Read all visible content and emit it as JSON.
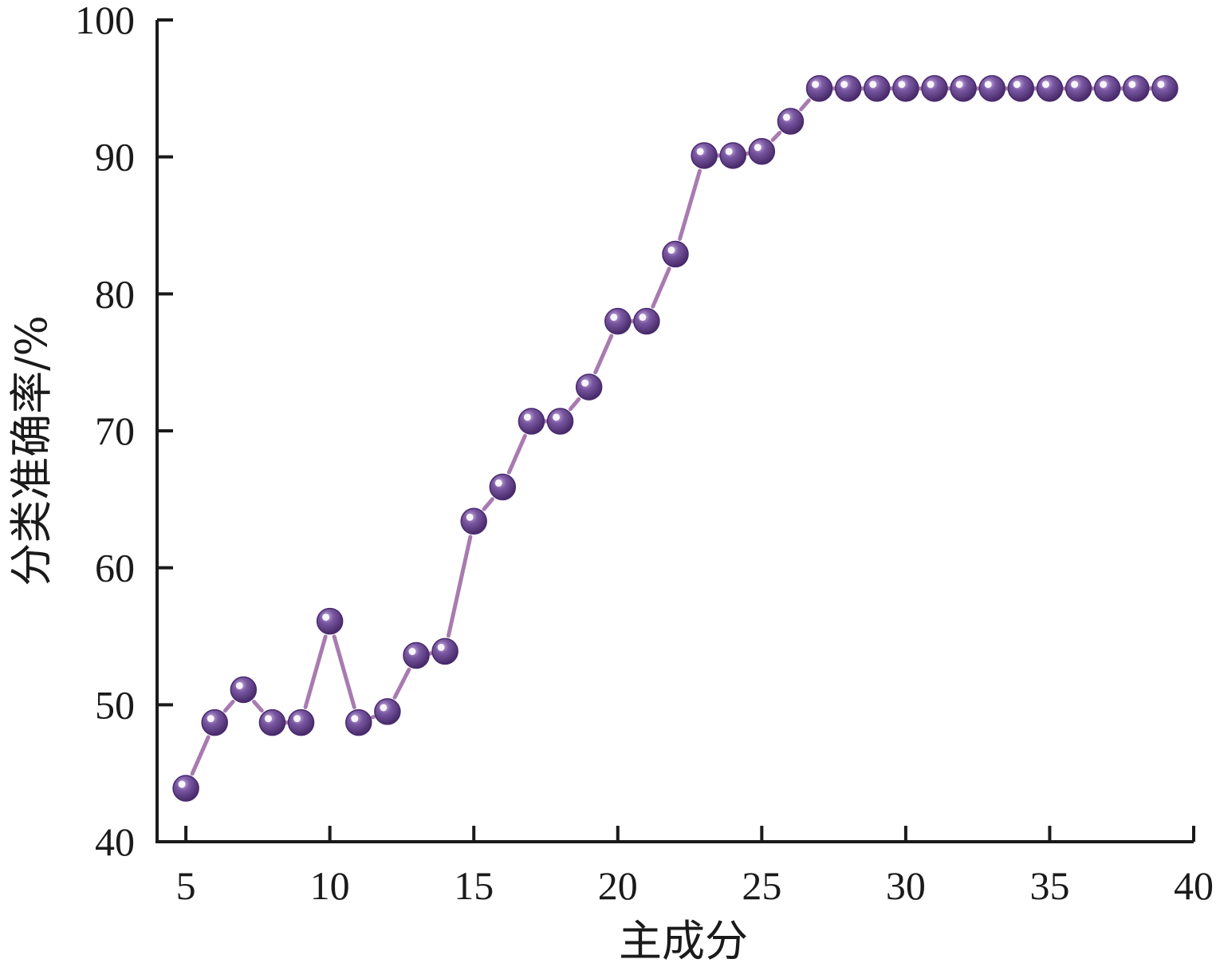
{
  "chart_data": {
    "type": "line",
    "xlabel": "主成分",
    "ylabel": "分类准确率/%",
    "xlim": [
      4,
      40
    ],
    "ylim": [
      40,
      100
    ],
    "xticks": [
      "5",
      "10",
      "15",
      "20",
      "25",
      "30",
      "35",
      "40"
    ],
    "yticks": [
      "40",
      "50",
      "60",
      "70",
      "80",
      "90",
      "100"
    ],
    "grid": false,
    "series": [
      {
        "x": [
          5,
          6,
          7,
          8,
          9,
          10,
          11,
          12,
          13,
          14,
          15,
          16,
          17,
          18,
          19,
          20,
          21,
          22,
          23,
          24,
          25,
          26,
          27,
          28,
          29,
          30,
          31,
          32,
          33,
          34,
          35,
          36,
          37,
          38,
          39
        ],
        "y": [
          43.9,
          48.7,
          51.1,
          48.7,
          48.7,
          56.1,
          48.7,
          49.5,
          53.6,
          53.9,
          63.4,
          65.9,
          70.7,
          70.7,
          73.2,
          78.0,
          78.0,
          82.9,
          90.1,
          90.1,
          90.4,
          92.6,
          95.0,
          95.0,
          95.0,
          95.0,
          95.0,
          95.0,
          95.0,
          95.0,
          95.0,
          95.0,
          95.0,
          95.0,
          95.0
        ]
      }
    ]
  },
  "colors": {
    "line": "#a87bb0",
    "marker_dark": "#4a2a6e",
    "marker_mid": "#6f4d98",
    "marker_highlight": "#ffffff",
    "axis": "#1a1a1a"
  }
}
